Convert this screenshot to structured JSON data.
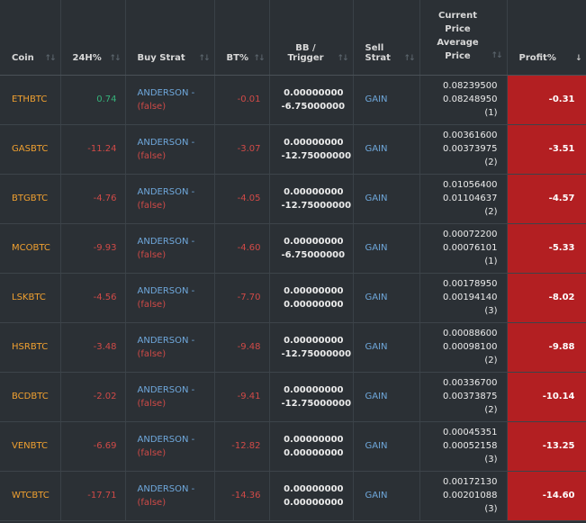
{
  "headers": {
    "coin": "Coin",
    "h24": "24H%",
    "buy_strat": "Buy Strat",
    "bt": "BT%",
    "bb_line1": "BB /",
    "bb_line2": "Trigger",
    "sell_line1": "Sell",
    "sell_line2": "Strat",
    "price_line1": "Current",
    "price_line2": "Price",
    "price_line3": "Average",
    "price_line4": "Price",
    "profit": "Profit%"
  },
  "sort_icons": {
    "unsorted": "↑↓",
    "desc": "↓"
  },
  "rows": [
    {
      "coin": "ETHBTC",
      "h24": "0.74",
      "h24_sign": "pos",
      "buy_name": "ANDERSON -",
      "buy_flag": "(false)",
      "bt": "-0.01",
      "bb": "0.00000000",
      "trigger": "-6.75000000",
      "sell": "GAIN",
      "current": "0.08239500",
      "average": "0.08248950 (1)",
      "profit": "-0.31"
    },
    {
      "coin": "GASBTC",
      "h24": "-11.24",
      "h24_sign": "neg",
      "buy_name": "ANDERSON -",
      "buy_flag": "(false)",
      "bt": "-3.07",
      "bb": "0.00000000",
      "trigger": "-12.75000000",
      "sell": "GAIN",
      "current": "0.00361600",
      "average": "0.00373975 (2)",
      "profit": "-3.51"
    },
    {
      "coin": "BTGBTC",
      "h24": "-4.76",
      "h24_sign": "neg",
      "buy_name": "ANDERSON -",
      "buy_flag": "(false)",
      "bt": "-4.05",
      "bb": "0.00000000",
      "trigger": "-12.75000000",
      "sell": "GAIN",
      "current": "0.01056400",
      "average": "0.01104637 (2)",
      "profit": "-4.57"
    },
    {
      "coin": "MCOBTC",
      "h24": "-9.93",
      "h24_sign": "neg",
      "buy_name": "ANDERSON -",
      "buy_flag": "(false)",
      "bt": "-4.60",
      "bb": "0.00000000",
      "trigger": "-6.75000000",
      "sell": "GAIN",
      "current": "0.00072200",
      "average": "0.00076101 (1)",
      "profit": "-5.33"
    },
    {
      "coin": "LSKBTC",
      "h24": "-4.56",
      "h24_sign": "neg",
      "buy_name": "ANDERSON -",
      "buy_flag": "(false)",
      "bt": "-7.70",
      "bb": "0.00000000",
      "trigger": "0.00000000",
      "sell": "GAIN",
      "current": "0.00178950",
      "average": "0.00194140 (3)",
      "profit": "-8.02"
    },
    {
      "coin": "HSRBTC",
      "h24": "-3.48",
      "h24_sign": "neg",
      "buy_name": "ANDERSON -",
      "buy_flag": "(false)",
      "bt": "-9.48",
      "bb": "0.00000000",
      "trigger": "-12.75000000",
      "sell": "GAIN",
      "current": "0.00088600",
      "average": "0.00098100 (2)",
      "profit": "-9.88"
    },
    {
      "coin": "BCDBTC",
      "h24": "-2.02",
      "h24_sign": "neg",
      "buy_name": "ANDERSON -",
      "buy_flag": "(false)",
      "bt": "-9.41",
      "bb": "0.00000000",
      "trigger": "-12.75000000",
      "sell": "GAIN",
      "current": "0.00336700",
      "average": "0.00373875 (2)",
      "profit": "-10.14"
    },
    {
      "coin": "VENBTC",
      "h24": "-6.69",
      "h24_sign": "neg",
      "buy_name": "ANDERSON -",
      "buy_flag": "(false)",
      "bt": "-12.82",
      "bb": "0.00000000",
      "trigger": "0.00000000",
      "sell": "GAIN",
      "current": "0.00045351",
      "average": "0.00052158 (3)",
      "profit": "-13.25"
    },
    {
      "coin": "WTCBTC",
      "h24": "-17.71",
      "h24_sign": "neg",
      "buy_name": "ANDERSON -",
      "buy_flag": "(false)",
      "bt": "-14.36",
      "bb": "0.00000000",
      "trigger": "0.00000000",
      "sell": "GAIN",
      "current": "0.00172130",
      "average": "0.00201088 (3)",
      "profit": "-14.60"
    }
  ],
  "colors": {
    "profit_bg": "#b31f22",
    "coin": "#f0a030",
    "positive": "#36b27a",
    "negative": "#d04a47",
    "strat": "#6fa8dc"
  }
}
